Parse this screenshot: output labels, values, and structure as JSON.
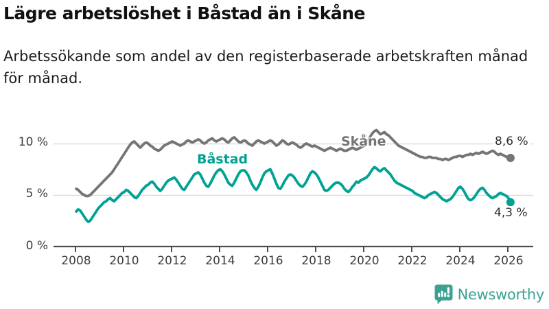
{
  "header": {
    "title": "Lägre arbetslöshet i Båstad än i Skåne",
    "subtitle_line1": "Arbetssökande som andel av den registerbaserade arbetskraften månad",
    "subtitle_line2": "för månad."
  },
  "footer": {
    "brand": "Newsworthy",
    "brand_color": "#3ba291"
  },
  "chart_data": {
    "type": "line",
    "frequency": "monthly",
    "x_start": "2008-01",
    "x_end": "2026-02",
    "x_ticks": [
      "2008",
      "2010",
      "2012",
      "2014",
      "2016",
      "2018",
      "2020",
      "2022",
      "2024",
      "2026"
    ],
    "y_tick_labels": [
      "10 %",
      "5 %",
      "0 %"
    ],
    "ylim": [
      0,
      12
    ],
    "grid_values": [
      5,
      10
    ],
    "legend_position": "inline-labels",
    "series": [
      {
        "name": "Skåne",
        "color": "#757575",
        "end_label": "8,6 %",
        "end_value": 8.6,
        "values": [
          5.6,
          5.5,
          5.3,
          5.1,
          5.0,
          4.9,
          4.9,
          5.0,
          5.2,
          5.4,
          5.6,
          5.8,
          6.0,
          6.2,
          6.4,
          6.6,
          6.8,
          7.0,
          7.2,
          7.5,
          7.8,
          8.1,
          8.4,
          8.7,
          9.0,
          9.3,
          9.6,
          9.9,
          10.1,
          10.2,
          10.0,
          9.8,
          9.6,
          9.8,
          10.0,
          10.1,
          10.0,
          9.8,
          9.7,
          9.5,
          9.4,
          9.3,
          9.4,
          9.6,
          9.8,
          9.9,
          10.0,
          10.1,
          10.2,
          10.1,
          10.0,
          9.9,
          9.8,
          9.9,
          10.0,
          10.2,
          10.3,
          10.2,
          10.1,
          10.2,
          10.3,
          10.4,
          10.3,
          10.1,
          10.0,
          10.1,
          10.3,
          10.4,
          10.5,
          10.3,
          10.2,
          10.3,
          10.4,
          10.5,
          10.4,
          10.2,
          10.1,
          10.3,
          10.5,
          10.6,
          10.4,
          10.2,
          10.1,
          10.2,
          10.3,
          10.2,
          10.0,
          9.9,
          9.8,
          10.0,
          10.2,
          10.3,
          10.2,
          10.1,
          10.0,
          10.1,
          10.2,
          10.3,
          10.2,
          10.0,
          9.8,
          9.9,
          10.1,
          10.3,
          10.2,
          10.0,
          9.9,
          10.0,
          10.1,
          10.0,
          9.9,
          9.7,
          9.6,
          9.7,
          9.9,
          10.0,
          9.9,
          9.8,
          9.7,
          9.8,
          9.7,
          9.6,
          9.5,
          9.4,
          9.3,
          9.4,
          9.5,
          9.6,
          9.5,
          9.4,
          9.3,
          9.4,
          9.5,
          9.4,
          9.3,
          9.3,
          9.4,
          9.5,
          9.6,
          9.5,
          9.4,
          9.5,
          9.6,
          9.7,
          9.8,
          10.0,
          10.3,
          10.7,
          11.0,
          11.2,
          11.3,
          11.1,
          10.9,
          11.0,
          11.1,
          10.9,
          10.8,
          10.6,
          10.4,
          10.2,
          10.0,
          9.8,
          9.7,
          9.6,
          9.5,
          9.4,
          9.3,
          9.2,
          9.1,
          9.0,
          8.9,
          8.8,
          8.7,
          8.7,
          8.6,
          8.6,
          8.7,
          8.7,
          8.6,
          8.6,
          8.6,
          8.5,
          8.5,
          8.4,
          8.5,
          8.5,
          8.4,
          8.5,
          8.6,
          8.7,
          8.7,
          8.8,
          8.8,
          8.7,
          8.8,
          8.9,
          8.9,
          9.0,
          8.9,
          9.0,
          9.1,
          9.0,
          9.1,
          9.2,
          9.1,
          9.0,
          9.1,
          9.2,
          9.3,
          9.2,
          9.0,
          8.9,
          9.0,
          8.9,
          8.8,
          8.7,
          8.7,
          8.6
        ]
      },
      {
        "name": "Båstad",
        "color": "#00a294",
        "end_label": "4,3 %",
        "end_value": 4.3,
        "values": [
          3.4,
          3.6,
          3.5,
          3.2,
          2.9,
          2.6,
          2.4,
          2.5,
          2.8,
          3.1,
          3.4,
          3.7,
          3.9,
          4.1,
          4.3,
          4.4,
          4.6,
          4.7,
          4.5,
          4.4,
          4.6,
          4.8,
          5.0,
          5.2,
          5.3,
          5.5,
          5.4,
          5.2,
          5.0,
          4.8,
          4.7,
          4.9,
          5.2,
          5.5,
          5.7,
          5.9,
          6.0,
          6.2,
          6.3,
          6.1,
          5.8,
          5.6,
          5.4,
          5.6,
          5.9,
          6.2,
          6.4,
          6.5,
          6.6,
          6.7,
          6.5,
          6.2,
          5.9,
          5.6,
          5.5,
          5.8,
          6.1,
          6.4,
          6.7,
          7.0,
          7.1,
          7.2,
          7.0,
          6.6,
          6.2,
          5.9,
          5.8,
          6.1,
          6.5,
          6.9,
          7.2,
          7.4,
          7.5,
          7.3,
          7.0,
          6.6,
          6.2,
          6.0,
          5.9,
          6.2,
          6.6,
          7.0,
          7.3,
          7.4,
          7.4,
          7.2,
          6.9,
          6.4,
          6.0,
          5.7,
          5.5,
          5.8,
          6.2,
          6.7,
          7.1,
          7.3,
          7.4,
          7.5,
          7.1,
          6.6,
          6.1,
          5.7,
          5.6,
          5.9,
          6.3,
          6.6,
          6.9,
          7.0,
          6.9,
          6.7,
          6.4,
          6.1,
          5.9,
          5.8,
          6.0,
          6.3,
          6.7,
          7.1,
          7.3,
          7.2,
          7.0,
          6.7,
          6.3,
          5.9,
          5.5,
          5.4,
          5.5,
          5.7,
          5.9,
          6.1,
          6.2,
          6.2,
          6.1,
          5.9,
          5.6,
          5.4,
          5.3,
          5.5,
          5.8,
          6.0,
          6.3,
          6.2,
          6.4,
          6.5,
          6.6,
          6.7,
          6.9,
          7.2,
          7.5,
          7.7,
          7.6,
          7.4,
          7.3,
          7.5,
          7.6,
          7.4,
          7.2,
          7.0,
          6.7,
          6.4,
          6.2,
          6.1,
          6.0,
          5.9,
          5.8,
          5.7,
          5.6,
          5.5,
          5.4,
          5.2,
          5.1,
          5.0,
          4.9,
          4.8,
          4.7,
          4.8,
          5.0,
          5.1,
          5.2,
          5.3,
          5.2,
          5.0,
          4.8,
          4.6,
          4.5,
          4.4,
          4.5,
          4.6,
          4.8,
          5.1,
          5.4,
          5.7,
          5.8,
          5.6,
          5.3,
          4.9,
          4.6,
          4.5,
          4.6,
          4.8,
          5.1,
          5.4,
          5.6,
          5.7,
          5.5,
          5.2,
          5.0,
          4.8,
          4.7,
          4.8,
          4.9,
          5.1,
          5.2,
          5.1,
          5.0,
          4.9,
          4.7,
          4.3
        ]
      }
    ]
  }
}
